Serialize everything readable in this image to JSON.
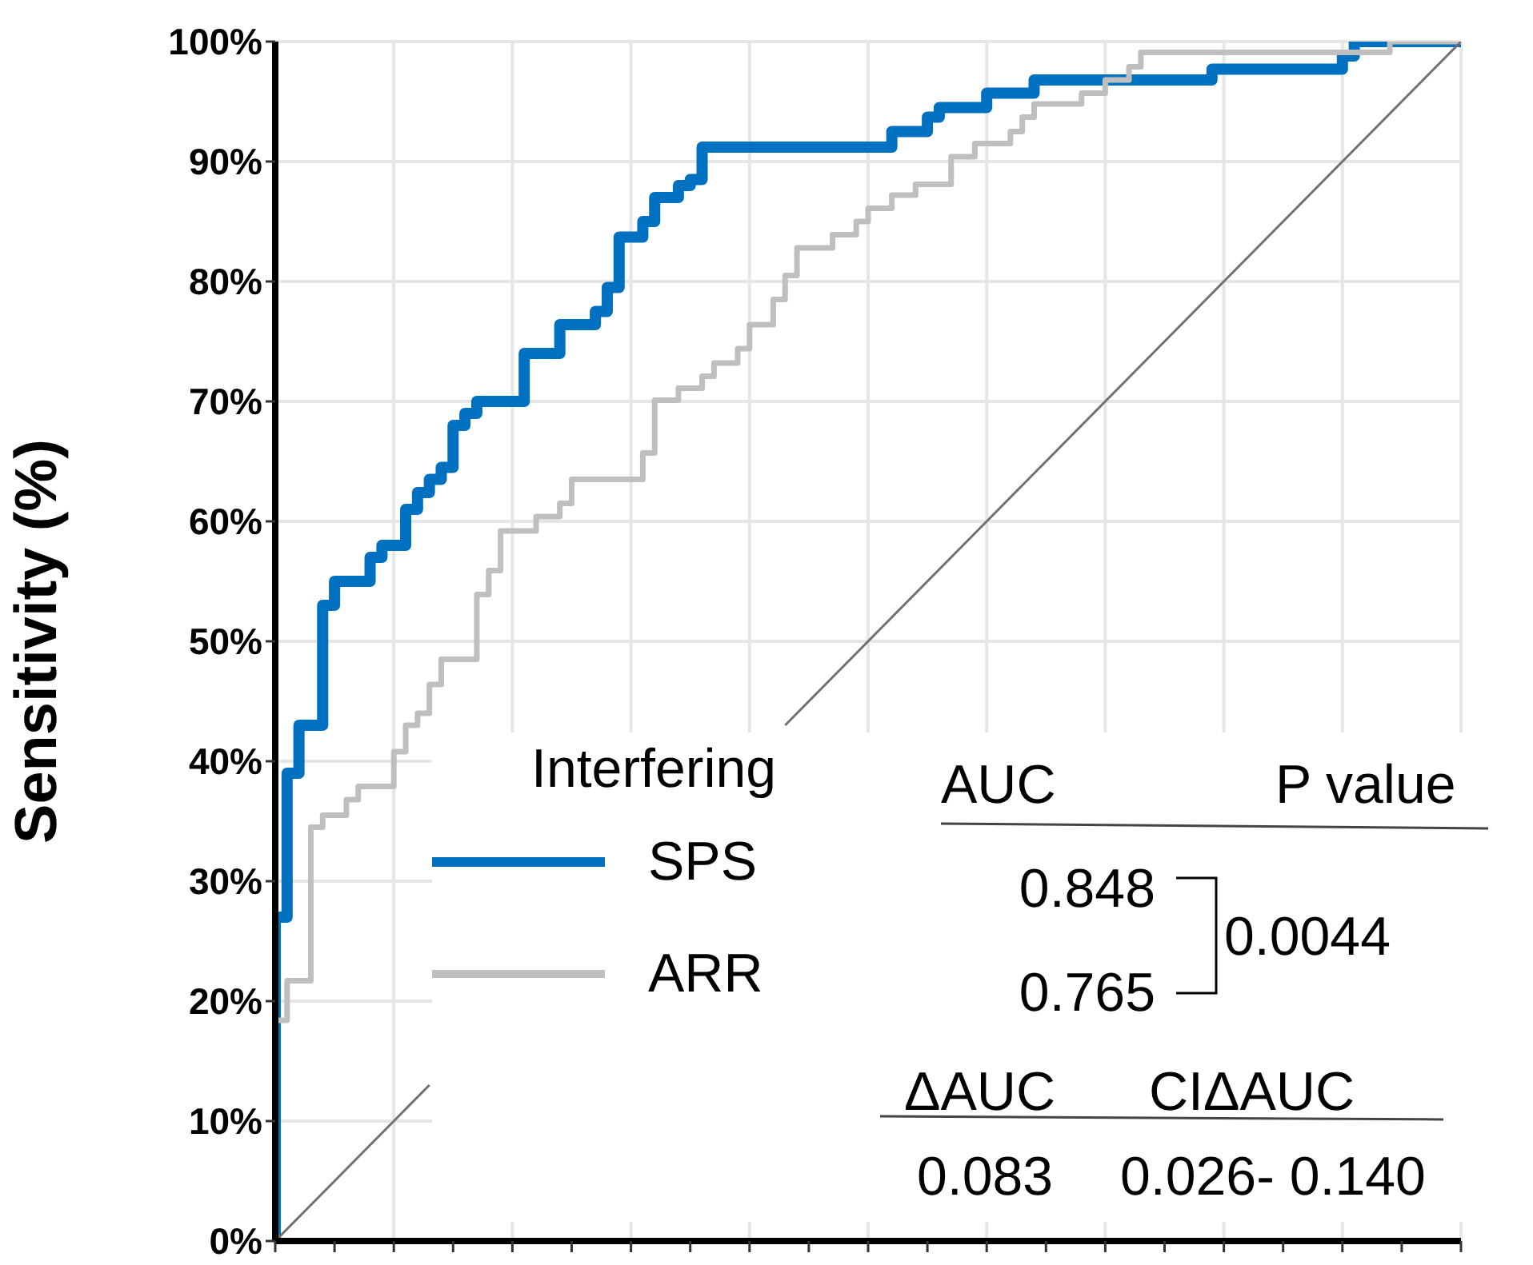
{
  "chart_data": {
    "type": "step",
    "ylabel": "Sensitivity (%)",
    "legend_title": "Interfering",
    "categories": [
      null,
      null,
      null,
      null,
      null,
      null,
      null,
      null,
      null,
      null,
      null,
      null,
      null,
      null,
      null,
      null,
      null,
      null,
      null,
      null,
      null,
      null,
      null,
      null,
      null,
      null,
      null,
      null,
      null,
      null,
      null,
      null,
      null,
      null,
      null,
      null,
      null,
      null,
      null,
      null,
      null,
      null,
      null,
      null,
      null,
      null,
      null,
      null,
      null,
      null,
      null,
      null,
      null,
      null,
      null,
      null,
      null,
      null,
      null,
      null,
      null,
      null,
      null,
      null,
      null,
      null,
      null,
      null,
      null,
      null,
      null,
      null,
      null,
      null,
      null,
      null,
      null,
      null,
      null,
      null,
      null,
      null,
      null,
      null,
      null,
      null,
      null,
      null,
      null,
      null,
      null,
      null,
      null,
      null,
      null,
      null,
      null,
      null,
      null,
      null,
      null
    ],
    "series": [
      {
        "name": "SPS",
        "color": "#0070c0",
        "values": [
          0,
          27,
          39,
          43,
          43,
          53,
          55,
          55,
          55,
          57,
          58,
          58,
          61,
          62.4,
          63.5,
          64.5,
          68,
          69,
          70,
          70,
          70,
          70,
          74,
          74,
          74,
          76.4,
          76.4,
          76.4,
          77.5,
          79.5,
          83.7,
          83.7,
          85,
          87,
          87,
          88,
          88.5,
          91.2,
          91.2,
          91.2,
          91.2,
          91.2,
          91.2,
          91.2,
          91.2,
          91.2,
          91.2,
          91.2,
          91.2,
          91.2,
          91.2,
          91.2,
          91.2,
          92.5,
          92.5,
          92.5,
          93.7,
          94.5,
          94.5,
          94.5,
          94.5,
          95.7,
          95.7,
          95.7,
          95.7,
          96.8,
          96.8,
          96.8,
          96.8,
          96.8,
          96.8,
          96.8,
          96.8,
          96.8,
          96.8,
          96.8,
          96.8,
          96.8,
          96.8,
          96.8,
          97.7,
          97.7,
          97.7,
          97.7,
          97.7,
          97.7,
          97.7,
          97.7,
          97.7,
          97.7,
          97.7,
          98.8,
          100,
          100,
          100,
          100,
          100,
          100,
          100,
          100,
          100
        ]
      },
      {
        "name": "ARR",
        "color": "#bfbfbf",
        "values": [
          0,
          18.4,
          21.7,
          21.7,
          34.5,
          35.5,
          35.5,
          36.8,
          37.9,
          37.9,
          37.9,
          40.8,
          43,
          44,
          46.4,
          48.5,
          48.5,
          48.5,
          53.9,
          55.9,
          59.2,
          59.2,
          59.2,
          60.4,
          60.4,
          61.5,
          63.5,
          63.5,
          63.5,
          63.5,
          63.5,
          63.5,
          65.7,
          70.1,
          70.1,
          71.1,
          71.1,
          72.1,
          73.2,
          73.2,
          74.4,
          76.4,
          76.4,
          78.5,
          80.5,
          82.8,
          82.8,
          82.8,
          83.9,
          83.9,
          85,
          86.1,
          86.1,
          87.2,
          87.2,
          88.1,
          88.1,
          88.1,
          90.4,
          90.4,
          91.5,
          91.5,
          91.5,
          92.5,
          93.7,
          94.8,
          94.8,
          94.8,
          94.8,
          95.7,
          95.7,
          96.8,
          96.8,
          97.9,
          99.1,
          99.1,
          99.1,
          99.1,
          99.1,
          99.1,
          99.1,
          99.1,
          99.1,
          99.1,
          99.1,
          99.1,
          99.1,
          99.1,
          99.1,
          99.1,
          99.1,
          99.1,
          99.1,
          99.1,
          99.1,
          100,
          100,
          100,
          100,
          100,
          100
        ]
      },
      {
        "type": "line",
        "color": "#707070",
        "values": [
          0,
          1,
          2,
          3,
          4,
          5,
          6,
          7,
          8,
          9,
          10,
          11,
          12,
          13,
          null,
          null,
          null,
          null,
          null,
          null,
          null,
          null,
          null,
          null,
          null,
          null,
          null,
          null,
          null,
          null,
          null,
          null,
          null,
          null,
          null,
          null,
          null,
          null,
          null,
          null,
          null,
          null,
          null,
          43,
          44,
          45,
          46,
          47,
          48,
          49,
          50,
          51,
          52,
          53,
          54,
          55,
          56,
          57,
          58,
          59,
          60,
          61,
          62,
          63,
          64,
          65,
          66,
          67,
          68,
          69,
          70,
          71,
          72,
          73,
          74,
          75,
          76,
          77,
          78,
          79,
          80,
          81,
          82,
          83,
          84,
          85,
          86,
          87,
          88,
          89,
          90,
          91,
          92,
          93,
          94,
          95,
          96,
          97,
          98,
          99,
          100
        ]
      }
    ],
    "ylim": [
      0,
      100
    ],
    "yticks": [
      {
        "value": 0,
        "label": "0%"
      },
      {
        "value": 10,
        "label": "10%"
      },
      {
        "value": 20,
        "label": "20%"
      },
      {
        "value": 30,
        "label": "30%"
      },
      {
        "value": 40,
        "label": "40%"
      },
      {
        "value": 50,
        "label": "50%"
      },
      {
        "value": 60,
        "label": "60%"
      },
      {
        "value": 70,
        "label": "70%"
      },
      {
        "value": 80,
        "label": "80%"
      },
      {
        "value": 90,
        "label": "90%"
      },
      {
        "value": 100,
        "label": "100%"
      }
    ],
    "grid": true,
    "legend": "bottom",
    "tick_labels": "y",
    "marker": "none",
    "annotations": [
      "AUC",
      "P value",
      "0.848",
      "0.765",
      "0.0044",
      "ΔAUC",
      "CIΔAUC",
      "0.083",
      "0.026- 0.140"
    ]
  }
}
